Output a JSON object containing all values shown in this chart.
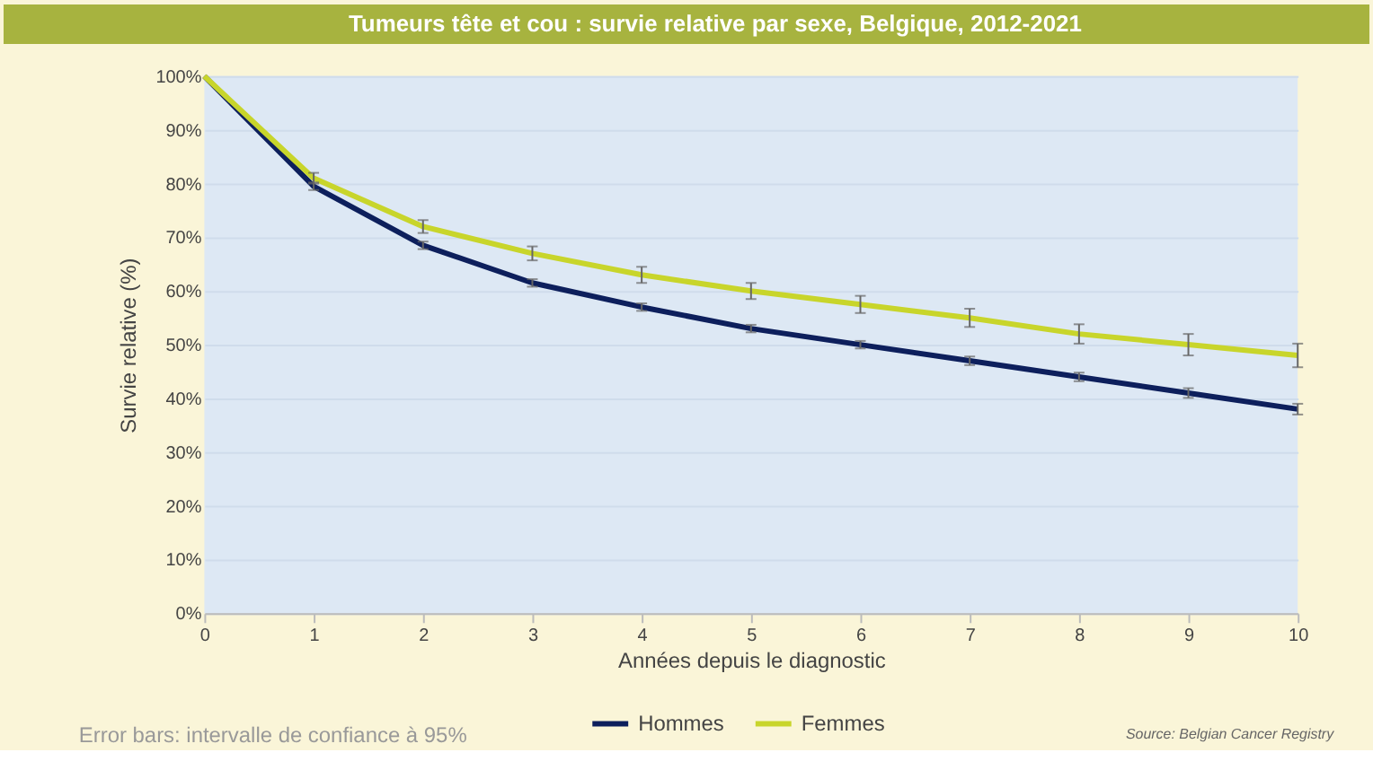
{
  "chart_data": {
    "type": "line",
    "title": "Tumeurs tête et cou : survie relative par sexe, Belgique, 2012-2021",
    "xlabel": "Années depuis le diagnostic",
    "ylabel": "Survie relative (%)",
    "x": [
      0,
      1,
      2,
      3,
      4,
      5,
      6,
      7,
      8,
      9,
      10
    ],
    "series": [
      {
        "name": "Hommes",
        "color": "#0d1f5c",
        "values": [
          100,
          79.5,
          68.5,
          61.5,
          57,
          53,
          50,
          47,
          44,
          41,
          38
        ],
        "errors": [
          null,
          0.7,
          0.7,
          0.7,
          0.7,
          0.7,
          0.7,
          0.8,
          0.8,
          0.9,
          1
        ]
      },
      {
        "name": "Femmes",
        "color": "#c8d52b",
        "values": [
          100,
          81,
          72,
          67,
          63,
          60,
          57.5,
          55,
          52,
          50,
          48
        ],
        "errors": [
          null,
          1,
          1.2,
          1.3,
          1.5,
          1.5,
          1.6,
          1.7,
          1.8,
          2,
          2.2
        ]
      }
    ],
    "xlim": [
      0,
      10
    ],
    "xticks": [
      0,
      1,
      2,
      3,
      4,
      5,
      6,
      7,
      8,
      9,
      10
    ],
    "ylim": [
      0,
      100
    ],
    "yticks": [
      {
        "value": 0,
        "label": "0%"
      },
      {
        "value": 10,
        "label": "10%"
      },
      {
        "value": 20,
        "label": "20%"
      },
      {
        "value": 30,
        "label": "30%"
      },
      {
        "value": 40,
        "label": "40%"
      },
      {
        "value": 50,
        "label": "50%"
      },
      {
        "value": 60,
        "label": "60%"
      },
      {
        "value": 70,
        "label": "70%"
      },
      {
        "value": 80,
        "label": "80%"
      },
      {
        "value": 90,
        "label": "90%"
      },
      {
        "value": 100,
        "label": "100%"
      }
    ],
    "grid": "y",
    "legend": "bottom",
    "marker": "none",
    "line_style": "solid",
    "annotations": [
      "Error bars: intervalle de confiance à 95%",
      "Source: Belgian Cancer Registry"
    ]
  }
}
